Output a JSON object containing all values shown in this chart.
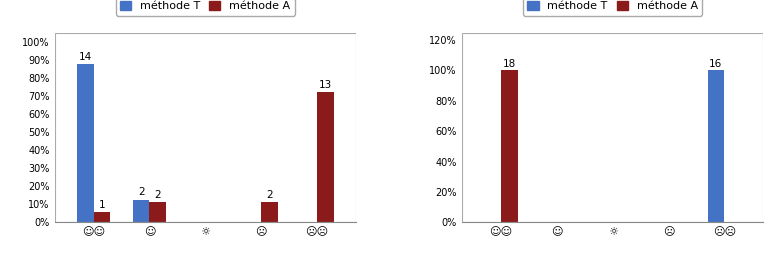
{
  "chart1": {
    "categories": [
      "☺☺",
      "☺",
      "☼",
      "☹",
      "☹☹"
    ],
    "methodeT": [
      0.875,
      0.125,
      0.0,
      0.0,
      0.0
    ],
    "methodeA": [
      0.055,
      0.111,
      0.0,
      0.111,
      0.722
    ],
    "labelsT": [
      14,
      2,
      null,
      null,
      null
    ],
    "labelsA": [
      1,
      2,
      null,
      2,
      13
    ],
    "ylim": [
      0,
      1.05
    ],
    "yticks": [
      0.0,
      0.1,
      0.2,
      0.3,
      0.4,
      0.5,
      0.6,
      0.7,
      0.8,
      0.9,
      1.0
    ],
    "yticklabels": [
      "0%",
      "10%",
      "20%",
      "30%",
      "40%",
      "50%",
      "60%",
      "70%",
      "80%",
      "90%",
      "100%"
    ]
  },
  "chart2": {
    "categories": [
      "☺☺",
      "☺",
      "☼",
      "☹",
      "☹☹"
    ],
    "methodeT": [
      0.0,
      0.0,
      0.0,
      0.0,
      1.0
    ],
    "methodeA": [
      1.0,
      0.0,
      0.0,
      0.0,
      0.0
    ],
    "labelsT": [
      null,
      null,
      null,
      null,
      16
    ],
    "labelsA": [
      18,
      null,
      null,
      null,
      null
    ],
    "ylim": [
      0,
      1.25
    ],
    "yticks": [
      0.0,
      0.2,
      0.4,
      0.6,
      0.8,
      1.0,
      1.2
    ],
    "yticklabels": [
      "0%",
      "20%",
      "40%",
      "60%",
      "80%",
      "100%",
      "120%"
    ]
  },
  "color_T": "#4472C4",
  "color_A": "#8B1A1A",
  "legend_T": "méthode T",
  "legend_A": "méthode A",
  "bar_width": 0.3,
  "label_fontsize": 7.5,
  "tick_fontsize": 7,
  "legend_fontsize": 8,
  "emoji_fontsize": 8,
  "bg_color": "#FFFFFF",
  "border_color": "#AAAAAA"
}
